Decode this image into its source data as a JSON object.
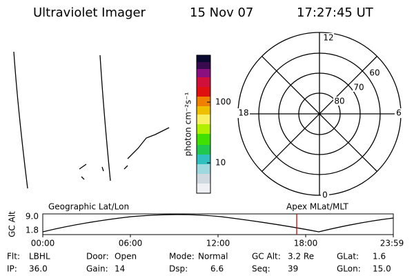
{
  "header": {
    "title": "Ultraviolet Imager",
    "date": "15 Nov 07",
    "time": "17:27:45 UT"
  },
  "colorbar": {
    "label": "photon cm⁻²s⁻¹",
    "ticks": [
      "100",
      "10"
    ]
  },
  "polar": {
    "mlt_labels": [
      "12",
      "18",
      "6",
      "0"
    ],
    "lat_labels": [
      "60",
      "70",
      "80"
    ]
  },
  "orbit_plot": {
    "y_label": "GC Alt",
    "y_ticks": [
      "9.0",
      "1.8"
    ],
    "left_title": "Geographic Lat/Lon",
    "right_title": "Apex MLat/MLT",
    "x_ticks": [
      "00:00",
      "06:00",
      "12:00",
      "18:00",
      "23:59"
    ]
  },
  "status": [
    [
      {
        "label": "Flt:",
        "value": "LBHL"
      },
      {
        "label": "Door:",
        "value": "Open"
      },
      {
        "label": "Mode:",
        "value": "Normal"
      },
      {
        "label": "GC Alt:",
        "value": "3.2 Re"
      },
      {
        "label": "GLat:",
        "value": "1.6"
      }
    ],
    [
      {
        "label": "IP:",
        "value": "36.0"
      },
      {
        "label": "Gain:",
        "value": "14"
      },
      {
        "label": "Dsp:",
        "value": "6.6"
      },
      {
        "label": "Seq:",
        "value": "39"
      },
      {
        "label": "GLon:",
        "value": "15.0"
      }
    ]
  ]
}
